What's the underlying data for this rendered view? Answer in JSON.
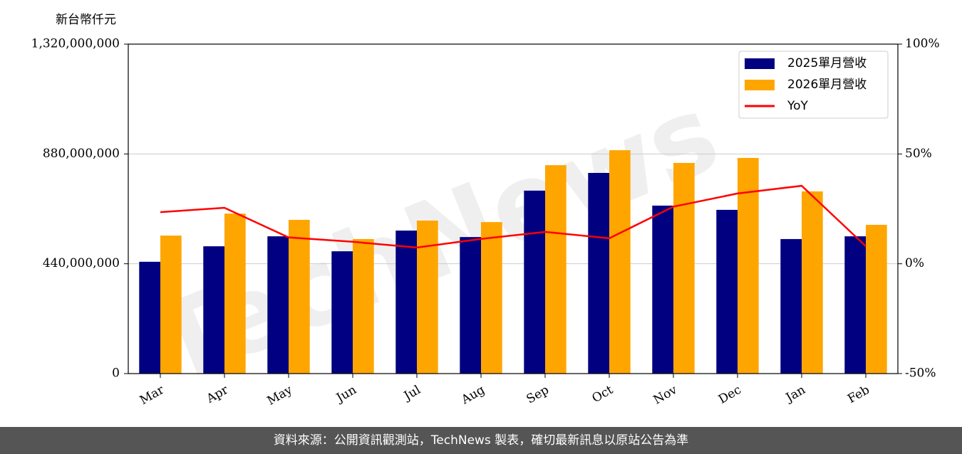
{
  "chart_data": {
    "type": "bar-line",
    "y_unit": "新台幣仟元",
    "watermark": "TechNews",
    "footer": "資料來源：公開資訊觀測站，TechNews 製表，確切最新訊息以原站公告為準",
    "categories": [
      "Mar",
      "Apr",
      "May",
      "Jun",
      "Jul",
      "Aug",
      "Sep",
      "Oct",
      "Nov",
      "Dec",
      "Jan",
      "Feb"
    ],
    "series": [
      {
        "name": "2025單月營收",
        "color": "#000080",
        "values": [
          448000000,
          510000000,
          550000000,
          490000000,
          573000000,
          547000000,
          733000000,
          804000000,
          673000000,
          656000000,
          539000000,
          550000000
        ]
      },
      {
        "name": "2026單月營收",
        "color": "#ffa500",
        "values": [
          553000000,
          641000000,
          616000000,
          539000000,
          613000000,
          607000000,
          835000000,
          895000000,
          844000000,
          864000000,
          730000000,
          596000000
        ]
      },
      {
        "name": "YoY",
        "color": "#ff0000",
        "axis": "y2",
        "values": [
          23.5,
          25.5,
          12,
          10,
          7.4,
          11.3,
          14.5,
          11.6,
          26,
          32,
          35.5,
          8
        ]
      }
    ],
    "ylim": [
      0,
      1320000000
    ],
    "yticks": [
      0,
      {
        "value": 440000000,
        "label": "440,000,000"
      },
      {
        "value": 880000000,
        "label": "880,000,000"
      },
      {
        "value": 1320000000,
        "label": "1,320,000,000"
      }
    ],
    "y2lim": [
      -50,
      100
    ],
    "y2ticks": [
      {
        "value": -50,
        "label": "-50%"
      },
      {
        "value": 0,
        "label": "0%"
      },
      {
        "value": 50,
        "label": "50%"
      },
      {
        "value": 100,
        "label": "100%"
      }
    ],
    "grid": true,
    "legend": "upper right"
  }
}
